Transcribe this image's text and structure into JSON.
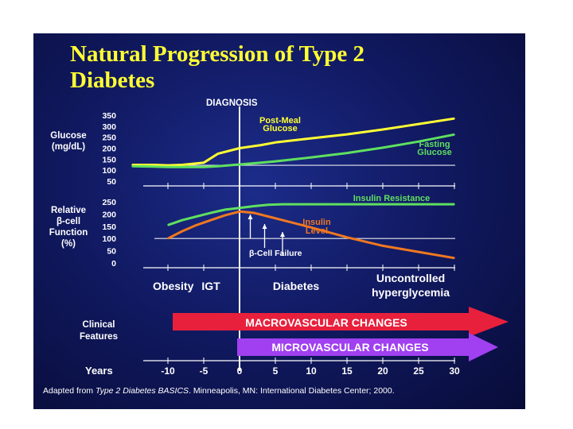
{
  "title": [
    "Natural Progression of Type 2",
    "Diabetes"
  ],
  "colors": {
    "background": "#111a63",
    "title": "#ffff33",
    "yellow_line": "#ffff33",
    "green_line": "#5fe05f",
    "orange_line": "#f07820",
    "macro_arrow": "#e8203c",
    "micro_arrow": "#a040f0",
    "diagnosis_line": "#ffffff"
  },
  "chart_data": [
    {
      "type": "line",
      "panel": "glucose",
      "ylabel": [
        "Glucose",
        "(mg/dL)"
      ],
      "yticks": [
        350,
        300,
        250,
        200,
        150,
        100,
        50
      ],
      "ylim": [
        50,
        350
      ],
      "x": [
        -15,
        -12,
        -10,
        -8,
        -5,
        -3,
        0,
        3,
        5,
        10,
        15,
        20,
        25,
        30
      ],
      "series": [
        {
          "name": "Post-Meal Glucose",
          "label": [
            "Post-Meal",
            "Glucose"
          ],
          "color": "#ffff33",
          "values": [
            124,
            124,
            122,
            124,
            134,
            175,
            200,
            214,
            226,
            245,
            263,
            285,
            310,
            335
          ]
        },
        {
          "name": "Fasting Glucose",
          "label": [
            "Fasting",
            "Glucose"
          ],
          "color": "#5fe05f",
          "values": [
            118,
            116,
            114,
            114,
            114,
            118,
            126,
            134,
            140,
            158,
            178,
            202,
            230,
            262
          ]
        }
      ],
      "reference_line": 122
    },
    {
      "type": "line",
      "panel": "beta-cell",
      "ylabel": [
        "Relative",
        "β-cell",
        "Function",
        "(%)"
      ],
      "yticks": [
        250,
        200,
        150,
        100,
        50,
        0
      ],
      "ylim": [
        0,
        250
      ],
      "x": [
        -10,
        -8,
        -6,
        -4,
        -2,
        0,
        2,
        4,
        6,
        10,
        15,
        20,
        25,
        30
      ],
      "series": [
        {
          "name": "Insulin Resistance",
          "label": [
            "Insulin Resistance"
          ],
          "color": "#5fe05f",
          "values": [
            155,
            175,
            190,
            205,
            218,
            225,
            232,
            238,
            240,
            240,
            240,
            240,
            240,
            240
          ]
        },
        {
          "name": "Insulin Level",
          "label": [
            "Insulin",
            "Level"
          ],
          "color": "#f07820",
          "values": [
            100,
            130,
            155,
            175,
            195,
            210,
            205,
            190,
            175,
            145,
            105,
            70,
            45,
            20
          ]
        }
      ],
      "reference_line": 100,
      "annotation": "β-Cell Failure"
    }
  ],
  "diagnosis_label": "DIAGNOSIS",
  "stages": [
    "Obesity",
    "IGT",
    "Diabetes",
    "Uncontrolled",
    "hyperglycemia"
  ],
  "clinical_features_label": [
    "Clinical",
    "Features"
  ],
  "macro_label": "MACROVASCULAR CHANGES",
  "micro_label": "MICROVASCULAR CHANGES",
  "years_axis": {
    "label": "Years",
    "ticks": [
      "-10",
      "-5",
      "0",
      "5",
      "10",
      "15",
      "20",
      "25",
      "30"
    ]
  },
  "footer": {
    "prefix": "Adapted from ",
    "source_title": "Type 2 Diabetes BASICS",
    "suffix": ". Minneapolis, MN: International Diabetes Center; 2000."
  }
}
